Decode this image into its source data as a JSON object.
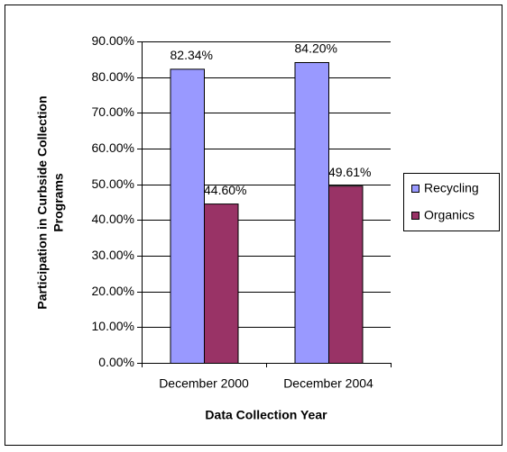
{
  "chart_data": {
    "type": "bar",
    "categories": [
      "December 2000",
      "December 2004"
    ],
    "series": [
      {
        "name": "Recycling",
        "color": "#9999ff",
        "values": [
          82.34,
          84.2
        ],
        "value_labels": [
          "82.34%",
          "84.20%"
        ]
      },
      {
        "name": "Organics",
        "color": "#993366",
        "values": [
          44.6,
          49.61
        ],
        "value_labels": [
          "44.60%",
          "49.61%"
        ]
      }
    ],
    "xlabel": "Data Collection Year",
    "ylabel": [
      "Participation in Curbside Collection",
      "Programs"
    ],
    "ylim": [
      0,
      90
    ],
    "yticks": [
      {
        "value": 0,
        "label": "0.00%"
      },
      {
        "value": 10,
        "label": "10.00%"
      },
      {
        "value": 20,
        "label": "20.00%"
      },
      {
        "value": 30,
        "label": "30.00%"
      },
      {
        "value": 40,
        "label": "40.00%"
      },
      {
        "value": 50,
        "label": "50.00%"
      },
      {
        "value": 60,
        "label": "60.00%"
      },
      {
        "value": 70,
        "label": "70.00%"
      },
      {
        "value": 80,
        "label": "80.00%"
      },
      {
        "value": 90,
        "label": "90.00%"
      }
    ],
    "grid": true,
    "legend": "right"
  }
}
